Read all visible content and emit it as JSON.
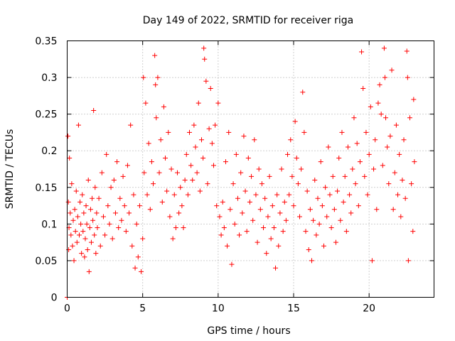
{
  "chart_data": {
    "type": "scatter",
    "title": "Day 149 of 2022, SRMTID for receiver riga",
    "xlabel": "GPS time / hours",
    "ylabel": "SRMTID / TECUs",
    "xlim": [
      0,
      24.3
    ],
    "ylim": [
      0,
      0.35
    ],
    "x_ticks": [
      0,
      5,
      10,
      15,
      20
    ],
    "x_tick_labels": [
      "0",
      "5",
      "10",
      "15",
      "20"
    ],
    "y_ticks": [
      0,
      0.05,
      0.1,
      0.15,
      0.2,
      0.25,
      0.3,
      0.35
    ],
    "y_tick_labels": [
      "0",
      "0.05",
      "0.1",
      "0.15",
      "0.2",
      "0.25",
      "0.3",
      "0.35"
    ],
    "grid": true,
    "legend": "none",
    "marker": "+",
    "color": "#ff0000",
    "series": [
      {
        "points": [
          [
            0.0,
            0.0
          ],
          [
            0.05,
            0.22
          ],
          [
            0.08,
            0.13
          ],
          [
            0.1,
            0.065
          ],
          [
            0.12,
            0.095
          ],
          [
            0.15,
            0.19
          ],
          [
            0.2,
            0.115
          ],
          [
            0.25,
            0.085
          ],
          [
            0.3,
            0.155
          ],
          [
            0.35,
            0.07
          ],
          [
            0.4,
            0.105
          ],
          [
            0.45,
            0.05
          ],
          [
            0.5,
            0.12
          ],
          [
            0.55,
            0.09
          ],
          [
            0.6,
            0.145
          ],
          [
            0.65,
            0.075
          ],
          [
            0.7,
            0.11
          ],
          [
            0.75,
            0.235
          ],
          [
            0.8,
            0.085
          ],
          [
            0.85,
            0.13
          ],
          [
            0.9,
            0.1
          ],
          [
            0.95,
            0.06
          ],
          [
            1.0,
            0.14
          ],
          [
            1.05,
            0.09
          ],
          [
            1.1,
            0.115
          ],
          [
            1.15,
            0.055
          ],
          [
            1.2,
            0.08
          ],
          [
            1.25,
            0.125
          ],
          [
            1.3,
            0.1
          ],
          [
            1.35,
            0.065
          ],
          [
            1.4,
            0.16
          ],
          [
            1.45,
            0.035
          ],
          [
            1.5,
            0.095
          ],
          [
            1.55,
            0.12
          ],
          [
            1.6,
            0.075
          ],
          [
            1.65,
            0.135
          ],
          [
            1.7,
            0.105
          ],
          [
            1.75,
            0.255
          ],
          [
            1.8,
            0.085
          ],
          [
            1.85,
            0.15
          ],
          [
            1.9,
            0.06
          ],
          [
            1.95,
            0.115
          ],
          [
            2.0,
            0.095
          ],
          [
            2.1,
            0.135
          ],
          [
            2.2,
            0.07
          ],
          [
            2.3,
            0.17
          ],
          [
            2.4,
            0.11
          ],
          [
            2.5,
            0.085
          ],
          [
            2.6,
            0.195
          ],
          [
            2.7,
            0.125
          ],
          [
            2.8,
            0.1
          ],
          [
            2.9,
            0.15
          ],
          [
            3.0,
            0.08
          ],
          [
            3.1,
            0.16
          ],
          [
            3.2,
            0.115
          ],
          [
            3.3,
            0.185
          ],
          [
            3.4,
            0.095
          ],
          [
            3.5,
            0.135
          ],
          [
            3.6,
            0.105
          ],
          [
            3.7,
            0.165
          ],
          [
            3.8,
            0.125
          ],
          [
            3.9,
            0.09
          ],
          [
            4.0,
            0.18
          ],
          [
            4.1,
            0.115
          ],
          [
            4.2,
            0.235
          ],
          [
            4.3,
            0.07
          ],
          [
            4.4,
            0.14
          ],
          [
            4.5,
            0.04
          ],
          [
            4.6,
            0.1
          ],
          [
            4.7,
            0.055
          ],
          [
            4.8,
            0.125
          ],
          [
            4.9,
            0.035
          ],
          [
            5.0,
            0.08
          ],
          [
            5.05,
            0.3
          ],
          [
            5.1,
            0.17
          ],
          [
            5.2,
            0.265
          ],
          [
            5.3,
            0.14
          ],
          [
            5.4,
            0.21
          ],
          [
            5.5,
            0.12
          ],
          [
            5.6,
            0.185
          ],
          [
            5.7,
            0.155
          ],
          [
            5.8,
            0.33
          ],
          [
            5.85,
            0.29
          ],
          [
            5.9,
            0.245
          ],
          [
            6.0,
            0.3
          ],
          [
            6.1,
            0.17
          ],
          [
            6.2,
            0.215
          ],
          [
            6.3,
            0.13
          ],
          [
            6.4,
            0.26
          ],
          [
            6.5,
            0.19
          ],
          [
            6.6,
            0.145
          ],
          [
            6.7,
            0.225
          ],
          [
            6.8,
            0.11
          ],
          [
            6.9,
            0.175
          ],
          [
            7.0,
            0.08
          ],
          [
            7.1,
            0.14
          ],
          [
            7.2,
            0.095
          ],
          [
            7.3,
            0.17
          ],
          [
            7.4,
            0.115
          ],
          [
            7.5,
            0.15
          ],
          [
            7.6,
            0.125
          ],
          [
            7.7,
            0.095
          ],
          [
            7.8,
            0.16
          ],
          [
            7.9,
            0.195
          ],
          [
            8.0,
            0.14
          ],
          [
            8.1,
            0.225
          ],
          [
            8.2,
            0.18
          ],
          [
            8.3,
            0.16
          ],
          [
            8.4,
            0.235
          ],
          [
            8.5,
            0.205
          ],
          [
            8.6,
            0.17
          ],
          [
            8.7,
            0.265
          ],
          [
            8.8,
            0.145
          ],
          [
            8.9,
            0.215
          ],
          [
            9.0,
            0.19
          ],
          [
            9.05,
            0.34
          ],
          [
            9.1,
            0.325
          ],
          [
            9.2,
            0.295
          ],
          [
            9.3,
            0.155
          ],
          [
            9.4,
            0.23
          ],
          [
            9.5,
            0.285
          ],
          [
            9.6,
            0.21
          ],
          [
            9.7,
            0.18
          ],
          [
            9.8,
            0.235
          ],
          [
            9.9,
            0.125
          ],
          [
            10.0,
            0.265
          ],
          [
            10.1,
            0.11
          ],
          [
            10.2,
            0.085
          ],
          [
            10.3,
            0.13
          ],
          [
            10.4,
            0.095
          ],
          [
            10.5,
            0.185
          ],
          [
            10.6,
            0.07
          ],
          [
            10.7,
            0.225
          ],
          [
            10.8,
            0.12
          ],
          [
            10.9,
            0.045
          ],
          [
            11.0,
            0.155
          ],
          [
            11.1,
            0.1
          ],
          [
            11.2,
            0.195
          ],
          [
            11.3,
            0.135
          ],
          [
            11.4,
            0.085
          ],
          [
            11.5,
            0.17
          ],
          [
            11.6,
            0.115
          ],
          [
            11.7,
            0.22
          ],
          [
            11.8,
            0.145
          ],
          [
            11.9,
            0.09
          ],
          [
            12.0,
            0.19
          ],
          [
            12.1,
            0.13
          ],
          [
            12.2,
            0.165
          ],
          [
            12.3,
            0.105
          ],
          [
            12.4,
            0.215
          ],
          [
            12.5,
            0.14
          ],
          [
            12.6,
            0.075
          ],
          [
            12.7,
            0.175
          ],
          [
            12.8,
            0.12
          ],
          [
            12.9,
            0.155
          ],
          [
            13.0,
            0.095
          ],
          [
            13.1,
            0.135
          ],
          [
            13.2,
            0.06
          ],
          [
            13.3,
            0.11
          ],
          [
            13.4,
            0.165
          ],
          [
            13.5,
            0.08
          ],
          [
            13.6,
            0.125
          ],
          [
            13.7,
            0.095
          ],
          [
            13.8,
            0.04
          ],
          [
            13.9,
            0.14
          ],
          [
            14.0,
            0.07
          ],
          [
            14.1,
            0.115
          ],
          [
            14.2,
            0.175
          ],
          [
            14.3,
            0.09
          ],
          [
            14.4,
            0.13
          ],
          [
            14.5,
            0.105
          ],
          [
            14.6,
            0.195
          ],
          [
            14.7,
            0.14
          ],
          [
            14.8,
            0.215
          ],
          [
            14.9,
            0.165
          ],
          [
            15.0,
            0.125
          ],
          [
            15.1,
            0.24
          ],
          [
            15.2,
            0.19
          ],
          [
            15.3,
            0.155
          ],
          [
            15.4,
            0.11
          ],
          [
            15.5,
            0.175
          ],
          [
            15.6,
            0.28
          ],
          [
            15.7,
            0.225
          ],
          [
            15.8,
            0.09
          ],
          [
            15.9,
            0.145
          ],
          [
            16.0,
            0.065
          ],
          [
            16.1,
            0.12
          ],
          [
            16.2,
            0.05
          ],
          [
            16.3,
            0.105
          ],
          [
            16.4,
            0.16
          ],
          [
            16.5,
            0.085
          ],
          [
            16.6,
            0.135
          ],
          [
            16.7,
            0.1
          ],
          [
            16.8,
            0.185
          ],
          [
            16.9,
            0.125
          ],
          [
            17.0,
            0.07
          ],
          [
            17.1,
            0.15
          ],
          [
            17.2,
            0.11
          ],
          [
            17.3,
            0.205
          ],
          [
            17.4,
            0.14
          ],
          [
            17.5,
            0.095
          ],
          [
            17.6,
            0.165
          ],
          [
            17.7,
            0.12
          ],
          [
            17.8,
            0.075
          ],
          [
            17.9,
            0.145
          ],
          [
            18.0,
            0.19
          ],
          [
            18.1,
            0.105
          ],
          [
            18.2,
            0.225
          ],
          [
            18.3,
            0.13
          ],
          [
            18.4,
            0.165
          ],
          [
            18.5,
            0.09
          ],
          [
            18.6,
            0.205
          ],
          [
            18.7,
            0.14
          ],
          [
            18.8,
            0.115
          ],
          [
            18.9,
            0.175
          ],
          [
            19.0,
            0.245
          ],
          [
            19.1,
            0.155
          ],
          [
            19.2,
            0.21
          ],
          [
            19.3,
            0.125
          ],
          [
            19.4,
            0.185
          ],
          [
            19.5,
            0.335
          ],
          [
            19.6,
            0.285
          ],
          [
            19.7,
            0.165
          ],
          [
            19.8,
            0.225
          ],
          [
            19.9,
            0.14
          ],
          [
            20.0,
            0.195
          ],
          [
            20.1,
            0.26
          ],
          [
            20.2,
            0.05
          ],
          [
            20.3,
            0.175
          ],
          [
            20.4,
            0.215
          ],
          [
            20.5,
            0.12
          ],
          [
            20.6,
            0.265
          ],
          [
            20.7,
            0.29
          ],
          [
            20.8,
            0.25
          ],
          [
            20.9,
            0.18
          ],
          [
            21.0,
            0.34
          ],
          [
            21.05,
            0.3
          ],
          [
            21.1,
            0.245
          ],
          [
            21.2,
            0.205
          ],
          [
            21.3,
            0.155
          ],
          [
            21.4,
            0.22
          ],
          [
            21.5,
            0.31
          ],
          [
            21.6,
            0.12
          ],
          [
            21.7,
            0.17
          ],
          [
            21.8,
            0.235
          ],
          [
            21.9,
            0.14
          ],
          [
            22.0,
            0.195
          ],
          [
            22.1,
            0.11
          ],
          [
            22.2,
            0.16
          ],
          [
            22.3,
            0.215
          ],
          [
            22.4,
            0.135
          ],
          [
            22.5,
            0.336
          ],
          [
            22.55,
            0.3
          ],
          [
            22.6,
            0.05
          ],
          [
            22.7,
            0.245
          ],
          [
            22.8,
            0.155
          ],
          [
            22.9,
            0.09
          ],
          [
            22.95,
            0.27
          ],
          [
            23.0,
            0.185
          ]
        ]
      }
    ]
  }
}
